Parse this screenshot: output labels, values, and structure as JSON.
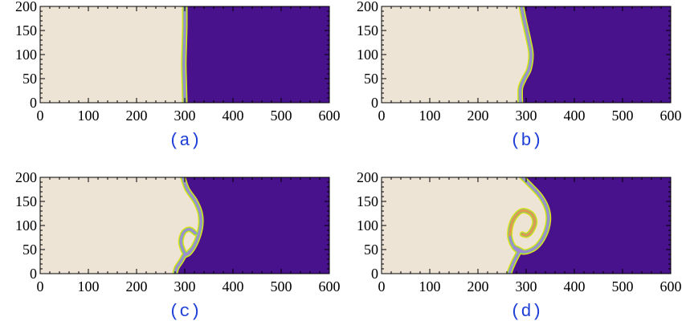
{
  "chart_data": {
    "type": "heatmap",
    "colors": {
      "left_field": "#ede4d6",
      "right_field": "#48128c",
      "interface_outer": "#e8e21c",
      "interface_mid": "#7dc87a",
      "interface_inner": "#a08ad6",
      "interface_core": "#e39a4a",
      "axes": "#000000",
      "panel_label": "#1f3fd6"
    },
    "x_ticks": [
      "0",
      "100",
      "200",
      "300",
      "400",
      "500",
      "600"
    ],
    "y_ticks": [
      "0",
      "50",
      "100",
      "150",
      "200"
    ],
    "xlim": [
      0,
      600
    ],
    "ylim": [
      0,
      200
    ],
    "panels": [
      {
        "label": "(a)",
        "interface": [
          [
            300,
            200
          ],
          [
            300,
            160
          ],
          [
            299,
            120
          ],
          [
            298,
            80
          ],
          [
            299,
            40
          ],
          [
            300,
            0
          ]
        ]
      },
      {
        "label": "(b)",
        "interface": [
          [
            290,
            200
          ],
          [
            296,
            170
          ],
          [
            305,
            130
          ],
          [
            310,
            100
          ],
          [
            306,
            70
          ],
          [
            296,
            50
          ],
          [
            288,
            30
          ],
          [
            288,
            0
          ]
        ]
      },
      {
        "label": "(c)",
        "interface": [
          [
            296,
            200
          ],
          [
            305,
            175
          ],
          [
            322,
            150
          ],
          [
            332,
            125
          ],
          [
            333,
            100
          ],
          [
            327,
            75
          ],
          [
            316,
            52
          ],
          [
            304,
            40
          ],
          [
            296,
            50
          ],
          [
            292,
            68
          ],
          [
            298,
            86
          ],
          [
            310,
            92
          ],
          [
            322,
            84
          ]
        ],
        "interface_tail": [
          [
            300,
            40
          ],
          [
            292,
            26
          ],
          [
            283,
            12
          ],
          [
            280,
            0
          ]
        ]
      },
      {
        "label": "(d)",
        "interface": [
          [
            292,
            200
          ],
          [
            312,
            180
          ],
          [
            330,
            160
          ],
          [
            343,
            135
          ],
          [
            346,
            110
          ],
          [
            338,
            80
          ],
          [
            320,
            55
          ],
          [
            295,
            45
          ],
          [
            275,
            55
          ],
          [
            266,
            80
          ],
          [
            272,
            110
          ],
          [
            290,
            130
          ],
          [
            310,
            125
          ],
          [
            318,
            108
          ],
          [
            312,
            90
          ],
          [
            302,
            80
          ],
          [
            292,
            82
          ]
        ],
        "interface_tail": [
          [
            285,
            45
          ],
          [
            276,
            28
          ],
          [
            268,
            10
          ],
          [
            265,
            0
          ]
        ]
      }
    ]
  }
}
